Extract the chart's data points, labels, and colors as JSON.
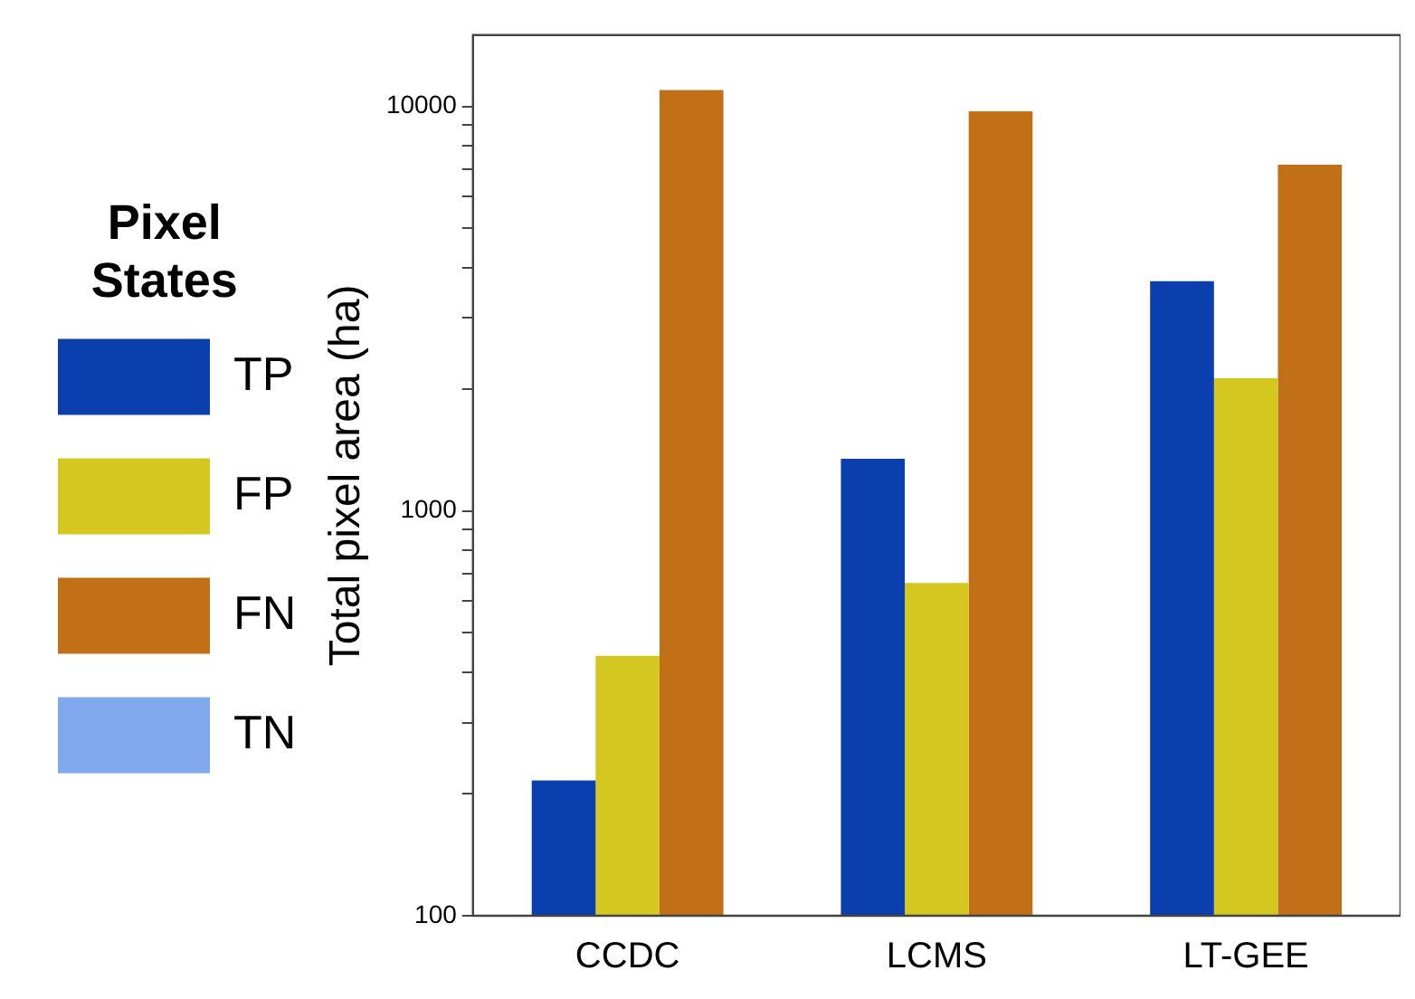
{
  "chart_data": {
    "type": "bar",
    "ylabel": "Total pixel area (ha)",
    "legend_title": "Pixel States",
    "categories": [
      "CCDC",
      "LCMS",
      "LT-GEE"
    ],
    "series": [
      {
        "name": "TP",
        "color": "#0c3fae",
        "values": [
          216,
          1346,
          3700
        ]
      },
      {
        "name": "FP",
        "color": "#d3c720",
        "values": [
          439,
          664,
          2130
        ]
      },
      {
        "name": "FN",
        "color": "#c27018",
        "values": [
          10970,
          9720,
          7180
        ]
      },
      {
        "name": "TN",
        "color": "#7fa9ec",
        "values": [
          null,
          null,
          null
        ]
      }
    ],
    "log": "y",
    "ylim": [
      100,
      15000
    ],
    "yticks": [
      100,
      {
        "value": 200,
        "label": null
      },
      {
        "value": 300,
        "label": null
      },
      {
        "value": 400,
        "label": null
      },
      {
        "value": 500,
        "label": null
      },
      {
        "value": 600,
        "label": null
      },
      {
        "value": 700,
        "label": null
      },
      {
        "value": 800,
        "label": null
      },
      {
        "value": 900,
        "label": null
      },
      1000,
      {
        "value": 2000,
        "label": null
      },
      {
        "value": 3000,
        "label": null
      },
      {
        "value": 4000,
        "label": null
      },
      {
        "value": 5000,
        "label": null
      },
      {
        "value": 6000,
        "label": null
      },
      {
        "value": 7000,
        "label": null
      },
      {
        "value": 8000,
        "label": null
      },
      {
        "value": 9000,
        "label": null
      },
      10000
    ],
    "grid": false,
    "legend": "left"
  }
}
